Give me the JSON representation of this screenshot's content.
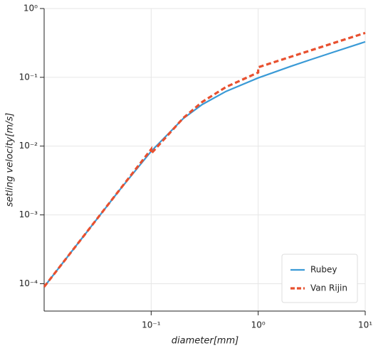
{
  "chart_data": {
    "type": "line",
    "xlabel": "diameter[mm]",
    "ylabel": "setling velocity[m/s]",
    "x": [
      0.01,
      0.02,
      0.05,
      0.1,
      0.1,
      0.2,
      0.3,
      0.5,
      1,
      1,
      2,
      3,
      5,
      10
    ],
    "series": [
      {
        "name": "Rubey",
        "color": "#3a9ad6",
        "dash": false,
        "values": [
          9e-05,
          0.00036,
          0.00224,
          0.00841,
          0.00841,
          0.0253,
          0.0403,
          0.0624,
          0.098,
          0.098,
          0.1439,
          0.1779,
          0.2311,
          0.328
        ]
      },
      {
        "name": "Van Rijin",
        "color": "#e8502f",
        "dash": true,
        "values": [
          9e-05,
          0.00036,
          0.00225,
          0.009,
          0.00779,
          0.0257,
          0.0439,
          0.0722,
          0.1176,
          0.14,
          0.198,
          0.2424,
          0.313,
          0.442
        ]
      }
    ],
    "xscale": "log",
    "yscale": "log",
    "xlim": [
      0.01,
      10
    ],
    "ylim": [
      4e-05,
      1
    ],
    "xticks": [
      {
        "value": 0.1,
        "label": "10⁻¹"
      },
      {
        "value": 1,
        "label": "10⁰"
      },
      {
        "value": 10,
        "label": "10¹"
      }
    ],
    "yticks": [
      {
        "value": 0.0001,
        "label": "10⁻⁴"
      },
      {
        "value": 0.001,
        "label": "10⁻³"
      },
      {
        "value": 0.01,
        "label": "10⁻²"
      },
      {
        "value": 0.1,
        "label": "10⁻¹"
      },
      {
        "value": 1,
        "label": "10⁰"
      }
    ],
    "grid": true,
    "legend": "lower right"
  }
}
